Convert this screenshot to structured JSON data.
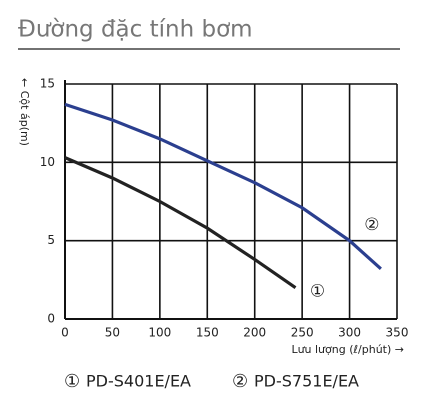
{
  "chart_data": {
    "type": "line",
    "title": "Đường đặc tính bơm",
    "x_label": "Lưu lượng (ℓ/phút) →",
    "y_label": "← Cột áp(m)",
    "series": [
      {
        "name": "PD-S401E/EA",
        "label": "①",
        "color": "#222222",
        "x": [
          0,
          50,
          100,
          150,
          200,
          243
        ],
        "values": [
          10.3,
          9.0,
          7.5,
          5.8,
          3.8,
          2.0
        ]
      },
      {
        "name": "PD-S751E/EA",
        "label": "②",
        "color": "#2b3f8f",
        "x": [
          0,
          50,
          100,
          150,
          200,
          250,
          300,
          333
        ],
        "values": [
          13.7,
          12.7,
          11.5,
          10.1,
          8.7,
          7.1,
          5.0,
          3.2
        ]
      }
    ],
    "xlim": [
      0,
      350
    ],
    "xticks": [
      0,
      50,
      100,
      150,
      200,
      250,
      300,
      350
    ],
    "ylim": [
      0,
      15
    ],
    "yticks": [
      0,
      5,
      10,
      15
    ],
    "grid": true
  }
}
